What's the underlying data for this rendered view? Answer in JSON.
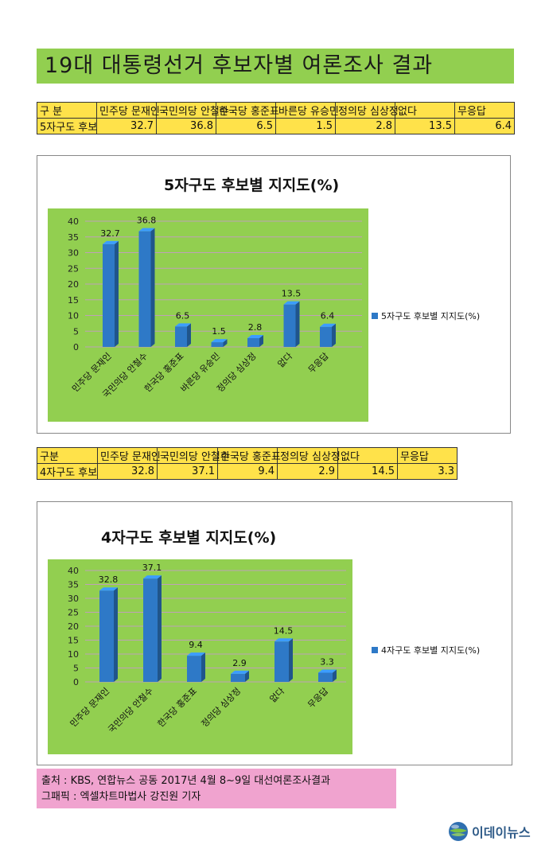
{
  "title": "19대 대통령선거 후보자별 여론조사 결과",
  "table5": {
    "header": [
      "구 분",
      "민주당 문재인",
      "국민의당 안철수",
      "한국당 홍준표",
      "바른당 유승민",
      "정의당 심상정",
      "없다",
      "무응답"
    ],
    "row": [
      "5자구도 후보",
      "32.7",
      "36.8",
      "6.5",
      "1.5",
      "2.8",
      "13.5",
      "6.4"
    ]
  },
  "table4": {
    "header": [
      "구분",
      "민주당 문재인",
      "국민의당 안철수",
      "한국당 홍준표",
      "정의당 심상정",
      "없다",
      "무응답"
    ],
    "row": [
      "4자구도 후보",
      "32.8",
      "37.1",
      "9.4",
      "2.9",
      "14.5",
      "3.3"
    ]
  },
  "chart_data": [
    {
      "type": "bar",
      "title": "5자구도 후보별 지지도(%)",
      "categories": [
        "민주당 문재인",
        "국민의당 안철수",
        "한국당 홍준표",
        "바른당 유승민",
        "정의당 심상정",
        "없다",
        "무응답"
      ],
      "series": [
        {
          "name": "5자구도 후보별 지지도(%)",
          "values": [
            32.7,
            36.8,
            6.5,
            1.5,
            2.8,
            13.5,
            6.4
          ]
        }
      ],
      "data_labels": [
        "32.7",
        "36.8",
        "6.5",
        "1.5",
        "2.8",
        "13.5",
        "6.4"
      ],
      "yticks": [
        "0",
        "5",
        "10",
        "15",
        "20",
        "25",
        "30",
        "35",
        "40"
      ],
      "ylim": [
        0,
        40
      ],
      "legend": "right",
      "bar_color": "#2e79c7",
      "plot_color": "#92cf50"
    },
    {
      "type": "bar",
      "title": "4자구도 후보별 지지도(%)",
      "categories": [
        "민주당 문재인",
        "국민의당 안철수",
        "한국당 홍준표",
        "정의당 심상정",
        "없다",
        "무응답"
      ],
      "series": [
        {
          "name": "4자구도 후보별 지지도(%)",
          "values": [
            32.8,
            37.1,
            9.4,
            2.9,
            14.5,
            3.3
          ]
        }
      ],
      "data_labels": [
        "32.8",
        "37.1",
        "9.4",
        "2.9",
        "14.5",
        "3.3"
      ],
      "yticks": [
        "0",
        "5",
        "10",
        "15",
        "20",
        "25",
        "30",
        "35",
        "40"
      ],
      "ylim": [
        0,
        40
      ],
      "legend": "right",
      "bar_color": "#2e79c7",
      "plot_color": "#92cf50"
    }
  ],
  "source": {
    "line1": "출처 : KBS, 연합뉴스 공동 2017년 4월 8~9일 대선여론조사결과",
    "line2": "그패픽 : 엑셀차트마법사 강진원 기자"
  },
  "logo": {
    "text": "이데이뉴스",
    "icon": "globe-icon"
  }
}
